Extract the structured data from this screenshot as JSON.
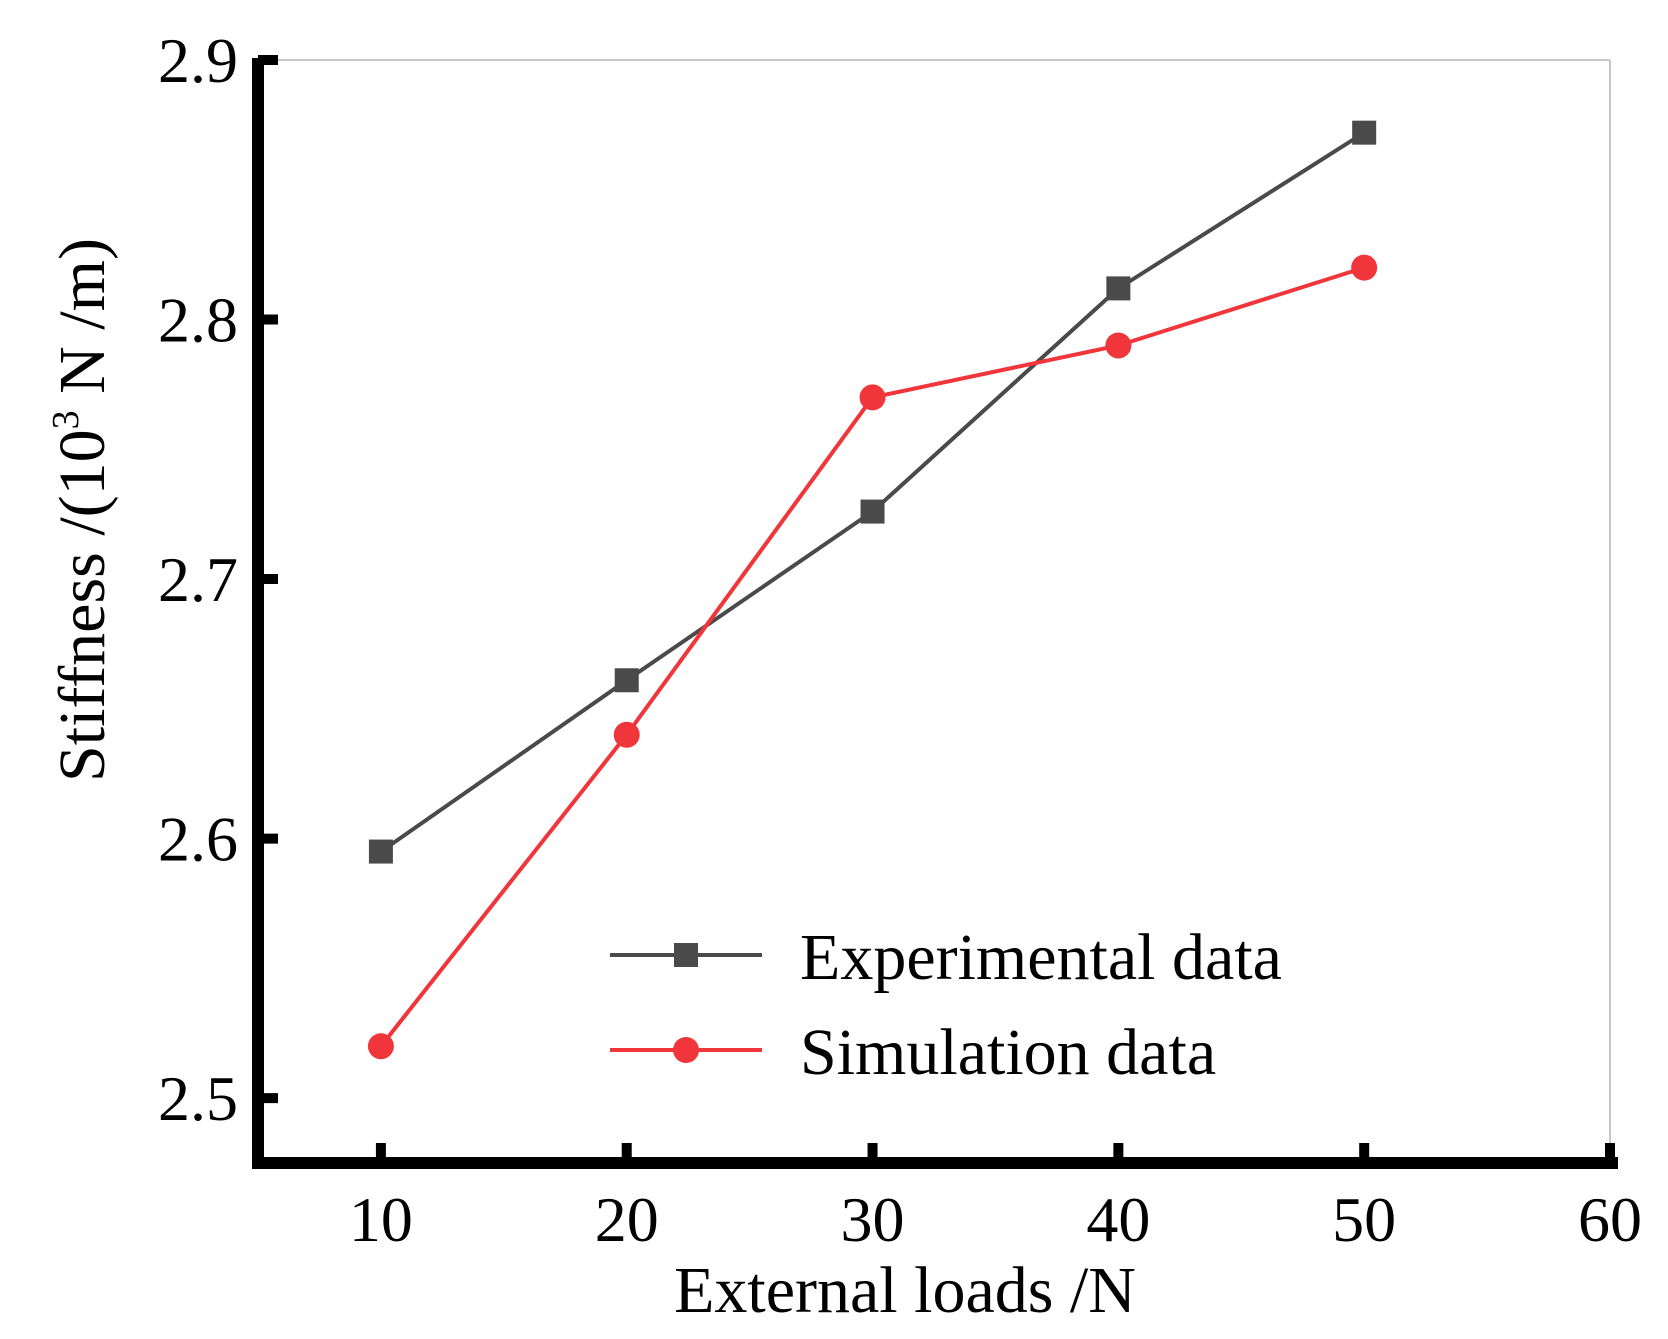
{
  "chart_data": {
    "type": "line",
    "title": "",
    "xlabel": "External loads /N",
    "ylabel_main": "Stiffness /(10",
    "ylabel_sup": "3",
    "ylabel_tail": " N /m)",
    "xlim": [
      5,
      60
    ],
    "ylim": [
      2.475,
      2.9
    ],
    "x_ticks": [
      10,
      20,
      30,
      40,
      50,
      60
    ],
    "x_tick_labels": [
      "10",
      "20",
      "30",
      "40",
      "50",
      "60"
    ],
    "y_ticks": [
      2.5,
      2.6,
      2.7,
      2.8,
      2.9
    ],
    "y_tick_labels": [
      "2.5",
      "2.6",
      "2.7",
      "2.8",
      "2.9"
    ],
    "legend_position": "bottom-right",
    "series": [
      {
        "name": "Experimental data",
        "color": "#4a4a4a",
        "marker": "square",
        "x": [
          10,
          20,
          30,
          40,
          50
        ],
        "values": [
          2.595,
          2.661,
          2.726,
          2.812,
          2.872
        ]
      },
      {
        "name": "Simulation data",
        "color": "#f0353b",
        "marker": "circle",
        "x": [
          10,
          20,
          30,
          40,
          50
        ],
        "values": [
          2.52,
          2.64,
          2.77,
          2.79,
          2.82
        ]
      }
    ]
  }
}
